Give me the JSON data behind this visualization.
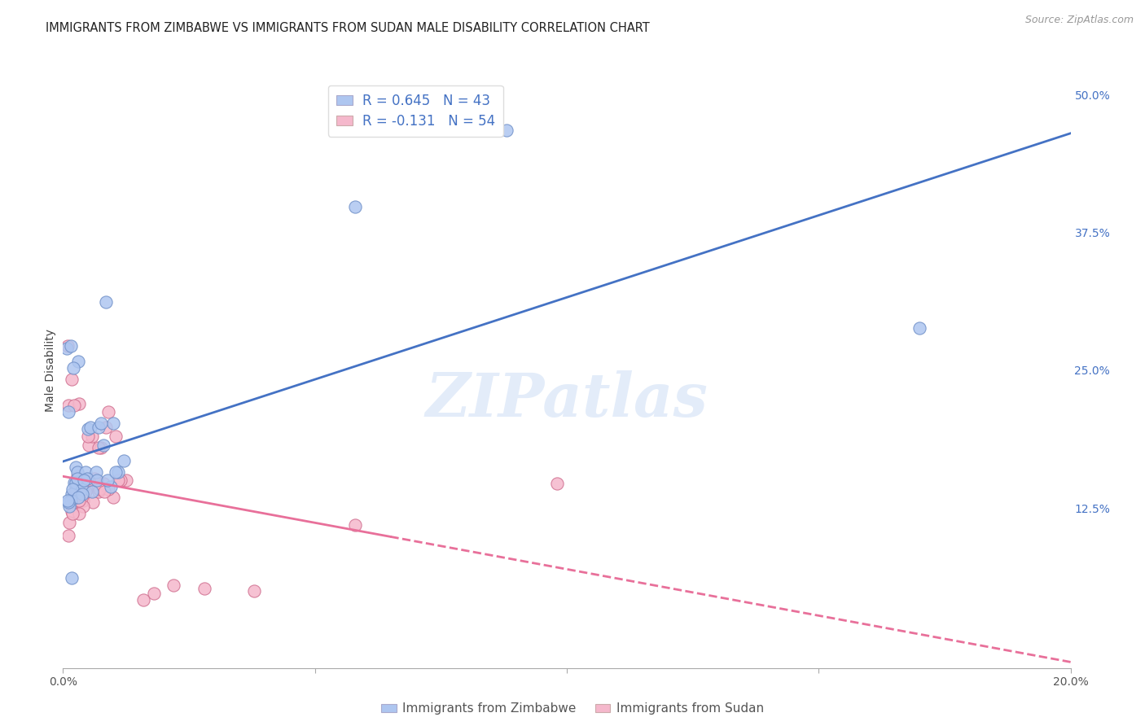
{
  "title": "IMMIGRANTS FROM ZIMBABWE VS IMMIGRANTS FROM SUDAN MALE DISABILITY CORRELATION CHART",
  "source": "Source: ZipAtlas.com",
  "ylabel": "Male Disability",
  "x_min": 0.0,
  "x_max": 0.2,
  "y_min": -0.02,
  "y_max": 0.52,
  "x_ticks": [
    0.0,
    0.05,
    0.1,
    0.15,
    0.2
  ],
  "x_tick_labels": [
    "0.0%",
    "",
    "",
    "",
    "20.0%"
  ],
  "y_ticks": [
    0.0,
    0.125,
    0.25,
    0.375,
    0.5
  ],
  "y_tick_labels": [
    "",
    "12.5%",
    "25.0%",
    "37.5%",
    "50.0%"
  ],
  "legend_label1": "R = 0.645   N = 43",
  "legend_label2": "R = -0.131   N = 54",
  "legend_color1": "#aec6f0",
  "legend_color2": "#f5b8cc",
  "dot_color1": "#aec6f0",
  "dot_color2": "#f5b8cc",
  "dot_edge_color1": "#7090c8",
  "dot_edge_color2": "#d07090",
  "line_color1": "#4472C4",
  "line_color2": "#e8709a",
  "watermark": "ZIPatlas",
  "bottom_label1": "Immigrants from Zimbabwe",
  "bottom_label2": "Immigrants from Sudan",
  "R1": 0.645,
  "N1": 43,
  "R2": -0.131,
  "N2": 54,
  "zimbabwe_x": [
    0.0008,
    0.0015,
    0.0025,
    0.001,
    0.003,
    0.002,
    0.0022,
    0.004,
    0.005,
    0.0028,
    0.0035,
    0.0045,
    0.0018,
    0.0026,
    0.0038,
    0.0016,
    0.0012,
    0.0055,
    0.0028,
    0.0019,
    0.007,
    0.008,
    0.0085,
    0.0065,
    0.0048,
    0.01,
    0.012,
    0.0075,
    0.0095,
    0.0058,
    0.0038,
    0.003,
    0.001,
    0.0018,
    0.011,
    0.0068,
    0.0088,
    0.0105,
    0.0042,
    0.17,
    0.058,
    0.088,
    0.0009
  ],
  "zimbabwe_y": [
    0.27,
    0.272,
    0.162,
    0.212,
    0.258,
    0.252,
    0.148,
    0.15,
    0.197,
    0.158,
    0.148,
    0.158,
    0.138,
    0.148,
    0.142,
    0.132,
    0.127,
    0.198,
    0.152,
    0.142,
    0.198,
    0.182,
    0.312,
    0.158,
    0.152,
    0.202,
    0.168,
    0.202,
    0.144,
    0.14,
    0.138,
    0.135,
    0.13,
    0.062,
    0.158,
    0.15,
    0.15,
    0.158,
    0.15,
    0.288,
    0.398,
    0.468,
    0.132
  ],
  "sudan_x": [
    0.0009,
    0.0018,
    0.0028,
    0.0011,
    0.0032,
    0.0022,
    0.0024,
    0.0042,
    0.0052,
    0.003,
    0.0037,
    0.0047,
    0.002,
    0.0028,
    0.004,
    0.0018,
    0.0013,
    0.0058,
    0.003,
    0.0021,
    0.0075,
    0.0085,
    0.009,
    0.007,
    0.005,
    0.0105,
    0.0125,
    0.008,
    0.01,
    0.006,
    0.004,
    0.0032,
    0.0011,
    0.0019,
    0.0115,
    0.007,
    0.009,
    0.011,
    0.0044,
    0.098,
    0.058,
    0.038,
    0.018,
    0.016,
    0.022,
    0.028,
    0.0032,
    0.0025,
    0.0045,
    0.0062,
    0.0052,
    0.0033,
    0.0072,
    0.0082
  ],
  "sudan_y": [
    0.272,
    0.242,
    0.154,
    0.218,
    0.22,
    0.218,
    0.14,
    0.14,
    0.182,
    0.142,
    0.137,
    0.142,
    0.127,
    0.142,
    0.132,
    0.122,
    0.112,
    0.19,
    0.145,
    0.135,
    0.18,
    0.198,
    0.212,
    0.18,
    0.19,
    0.19,
    0.15,
    0.147,
    0.135,
    0.13,
    0.127,
    0.12,
    0.1,
    0.12,
    0.15,
    0.14,
    0.142,
    0.15,
    0.14,
    0.147,
    0.11,
    0.05,
    0.048,
    0.042,
    0.055,
    0.052,
    0.132,
    0.142,
    0.15,
    0.152,
    0.15,
    0.147,
    0.142,
    0.14
  ]
}
